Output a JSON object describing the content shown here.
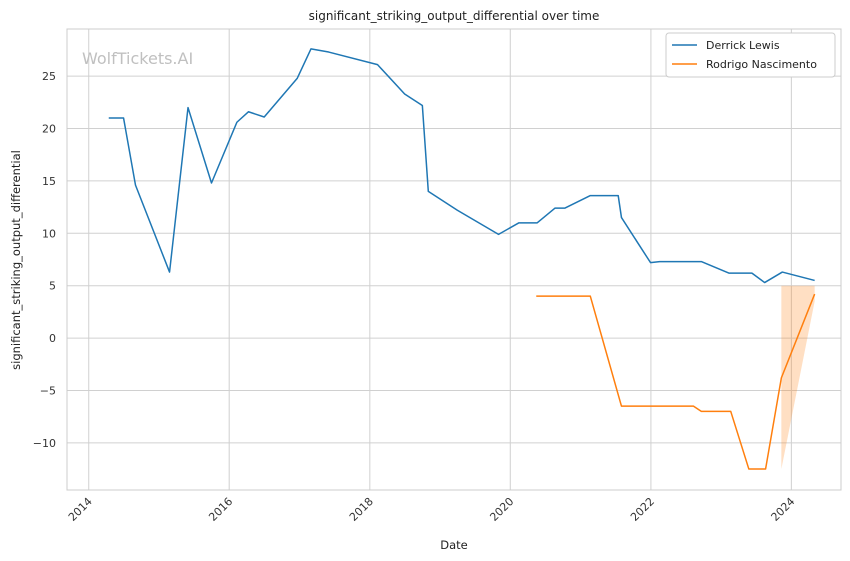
{
  "watermark": "WolfTickets.AI",
  "chart_data": {
    "type": "line",
    "title": "significant_striking_output_differential over time",
    "xlabel": "Date",
    "ylabel": "significant_striking_output_differential",
    "xlim": [
      "2013-09-10",
      "2024-09-15"
    ],
    "ylim": [
      -14.5,
      29.5
    ],
    "x_ticks": [
      "2014-01-01",
      "2016-01-01",
      "2018-01-01",
      "2020-01-01",
      "2022-01-01",
      "2024-01-01"
    ],
    "x_tick_labels": [
      "2014",
      "2016",
      "2018",
      "2020",
      "2022",
      "2024"
    ],
    "y_ticks": [
      -10,
      -5,
      0,
      5,
      10,
      15,
      20,
      25
    ],
    "y_tick_labels": [
      "−10",
      "−5",
      "0",
      "5",
      "10",
      "15",
      "20",
      "25"
    ],
    "grid": true,
    "legend_position": "top-right",
    "series": [
      {
        "name": "Derrick Lewis",
        "color": "#1f77b4",
        "points": [
          [
            "2014-04-15",
            21.0
          ],
          [
            "2014-07-01",
            21.0
          ],
          [
            "2014-09-01",
            14.6
          ],
          [
            "2015-02-25",
            6.3
          ],
          [
            "2015-06-01",
            22.0
          ],
          [
            "2015-10-01",
            14.8
          ],
          [
            "2016-02-10",
            20.6
          ],
          [
            "2016-04-10",
            21.6
          ],
          [
            "2016-07-01",
            21.1
          ],
          [
            "2016-12-20",
            24.8
          ],
          [
            "2017-03-01",
            27.6
          ],
          [
            "2017-06-01",
            27.3
          ],
          [
            "2018-02-10",
            26.1
          ],
          [
            "2018-07-01",
            23.3
          ],
          [
            "2018-10-01",
            22.2
          ],
          [
            "2018-11-01",
            14.0
          ],
          [
            "2019-04-01",
            12.2
          ],
          [
            "2019-11-01",
            9.9
          ],
          [
            "2020-02-15",
            11.0
          ],
          [
            "2020-05-20",
            11.0
          ],
          [
            "2020-08-20",
            12.4
          ],
          [
            "2020-10-10",
            12.4
          ],
          [
            "2021-02-20",
            13.6
          ],
          [
            "2021-07-15",
            13.6
          ],
          [
            "2021-08-01",
            11.5
          ],
          [
            "2021-12-30",
            7.2
          ],
          [
            "2022-02-15",
            7.3
          ],
          [
            "2022-09-20",
            7.3
          ],
          [
            "2023-02-10",
            6.2
          ],
          [
            "2023-06-10",
            6.2
          ],
          [
            "2023-08-15",
            5.3
          ],
          [
            "2023-11-15",
            6.3
          ],
          [
            "2024-05-01",
            5.5
          ]
        ]
      },
      {
        "name": "Rodrigo Nascimento",
        "color": "#ff7f0e",
        "points": [
          [
            "2020-05-15",
            4.0
          ],
          [
            "2021-02-20",
            4.0
          ],
          [
            "2021-08-01",
            -6.5
          ],
          [
            "2022-08-10",
            -6.5
          ],
          [
            "2022-09-20",
            -7.0
          ],
          [
            "2023-02-20",
            -7.0
          ],
          [
            "2023-05-25",
            -12.5
          ],
          [
            "2023-08-20",
            -12.5
          ],
          [
            "2023-11-10",
            -3.8
          ],
          [
            "2024-05-01",
            4.2
          ]
        ],
        "band": [
          [
            "2023-11-10",
            -12.5,
            5.0
          ],
          [
            "2024-05-01",
            3.5,
            5.0
          ]
        ]
      }
    ]
  }
}
